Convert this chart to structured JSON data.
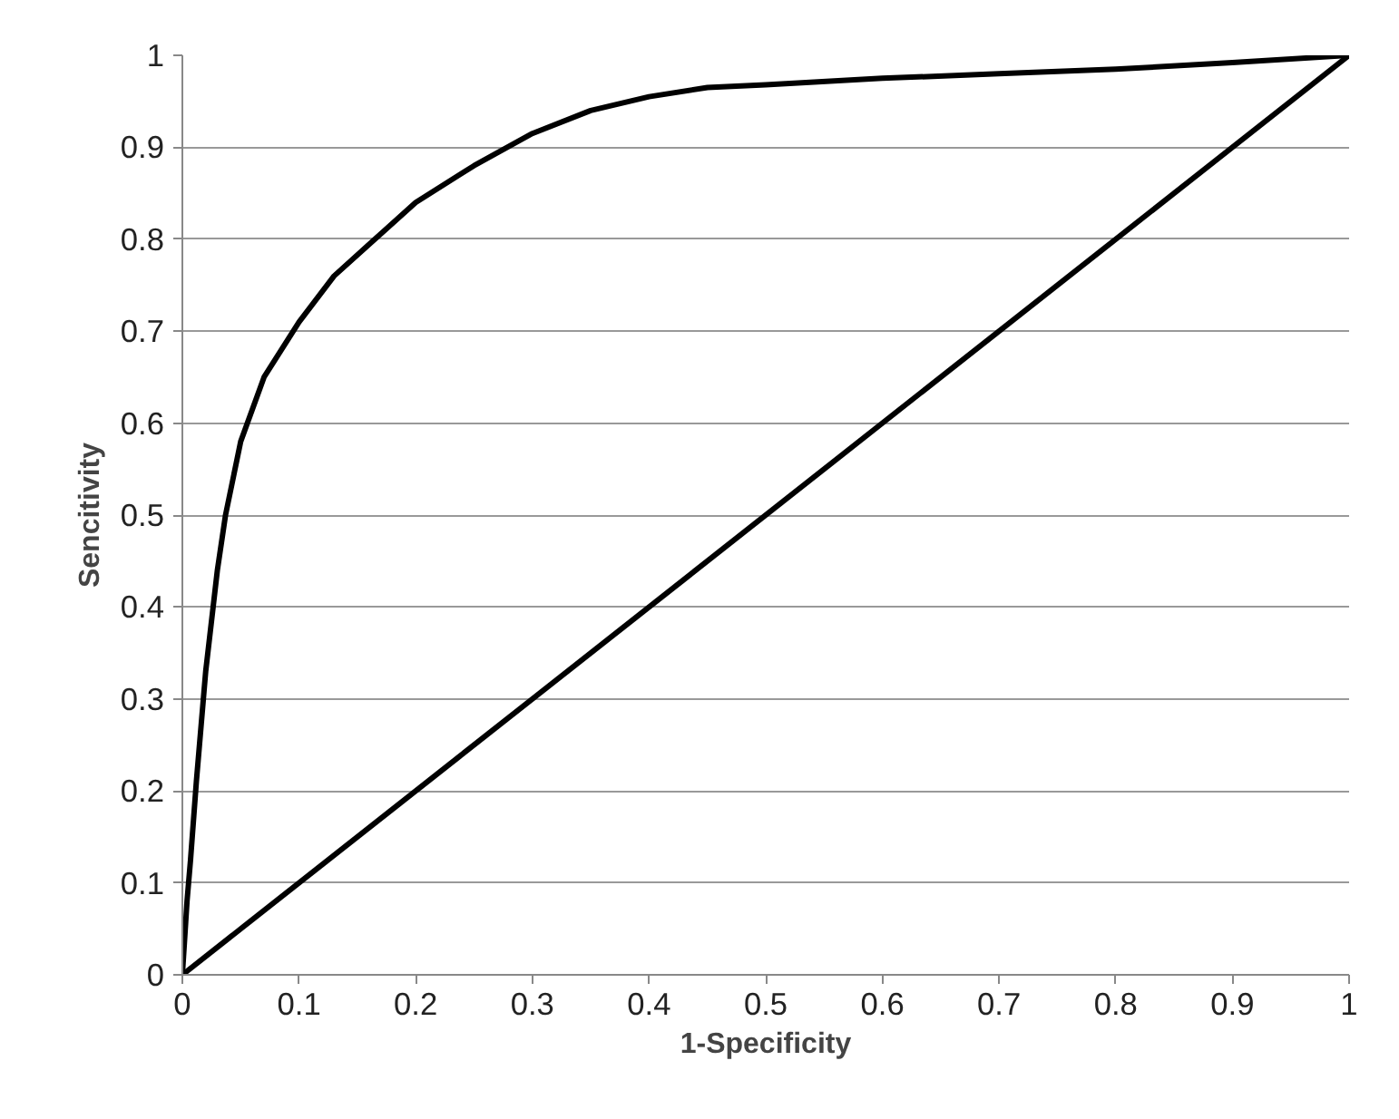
{
  "chart_data": {
    "type": "line",
    "xlabel": "1-Specificity",
    "ylabel": "Sencitivity",
    "xlim": [
      0,
      1
    ],
    "ylim": [
      0,
      1
    ],
    "xticks": [
      0,
      0.1,
      0.2,
      0.3,
      0.4,
      0.5,
      0.6,
      0.7,
      0.8,
      0.9,
      1
    ],
    "yticks": [
      0,
      0.1,
      0.2,
      0.3,
      0.4,
      0.5,
      0.6,
      0.7,
      0.8,
      0.9,
      1
    ],
    "grid": "y",
    "series": [
      {
        "color": "#000000",
        "x": [
          0,
          0.004,
          0.007,
          0.012,
          0.02,
          0.03,
          0.037,
          0.05,
          0.07,
          0.1,
          0.13,
          0.165,
          0.2,
          0.25,
          0.3,
          0.35,
          0.4,
          0.45,
          0.5,
          0.6,
          0.7,
          0.8,
          0.9,
          1
        ],
        "values": [
          0,
          0.08,
          0.125,
          0.21,
          0.33,
          0.44,
          0.5,
          0.58,
          0.65,
          0.71,
          0.76,
          0.8,
          0.84,
          0.88,
          0.915,
          0.94,
          0.955,
          0.965,
          0.968,
          0.975,
          0.98,
          0.985,
          0.992,
          1
        ]
      },
      {
        "color": "#000000",
        "x": [
          0,
          1
        ],
        "values": [
          0,
          1
        ]
      }
    ]
  }
}
